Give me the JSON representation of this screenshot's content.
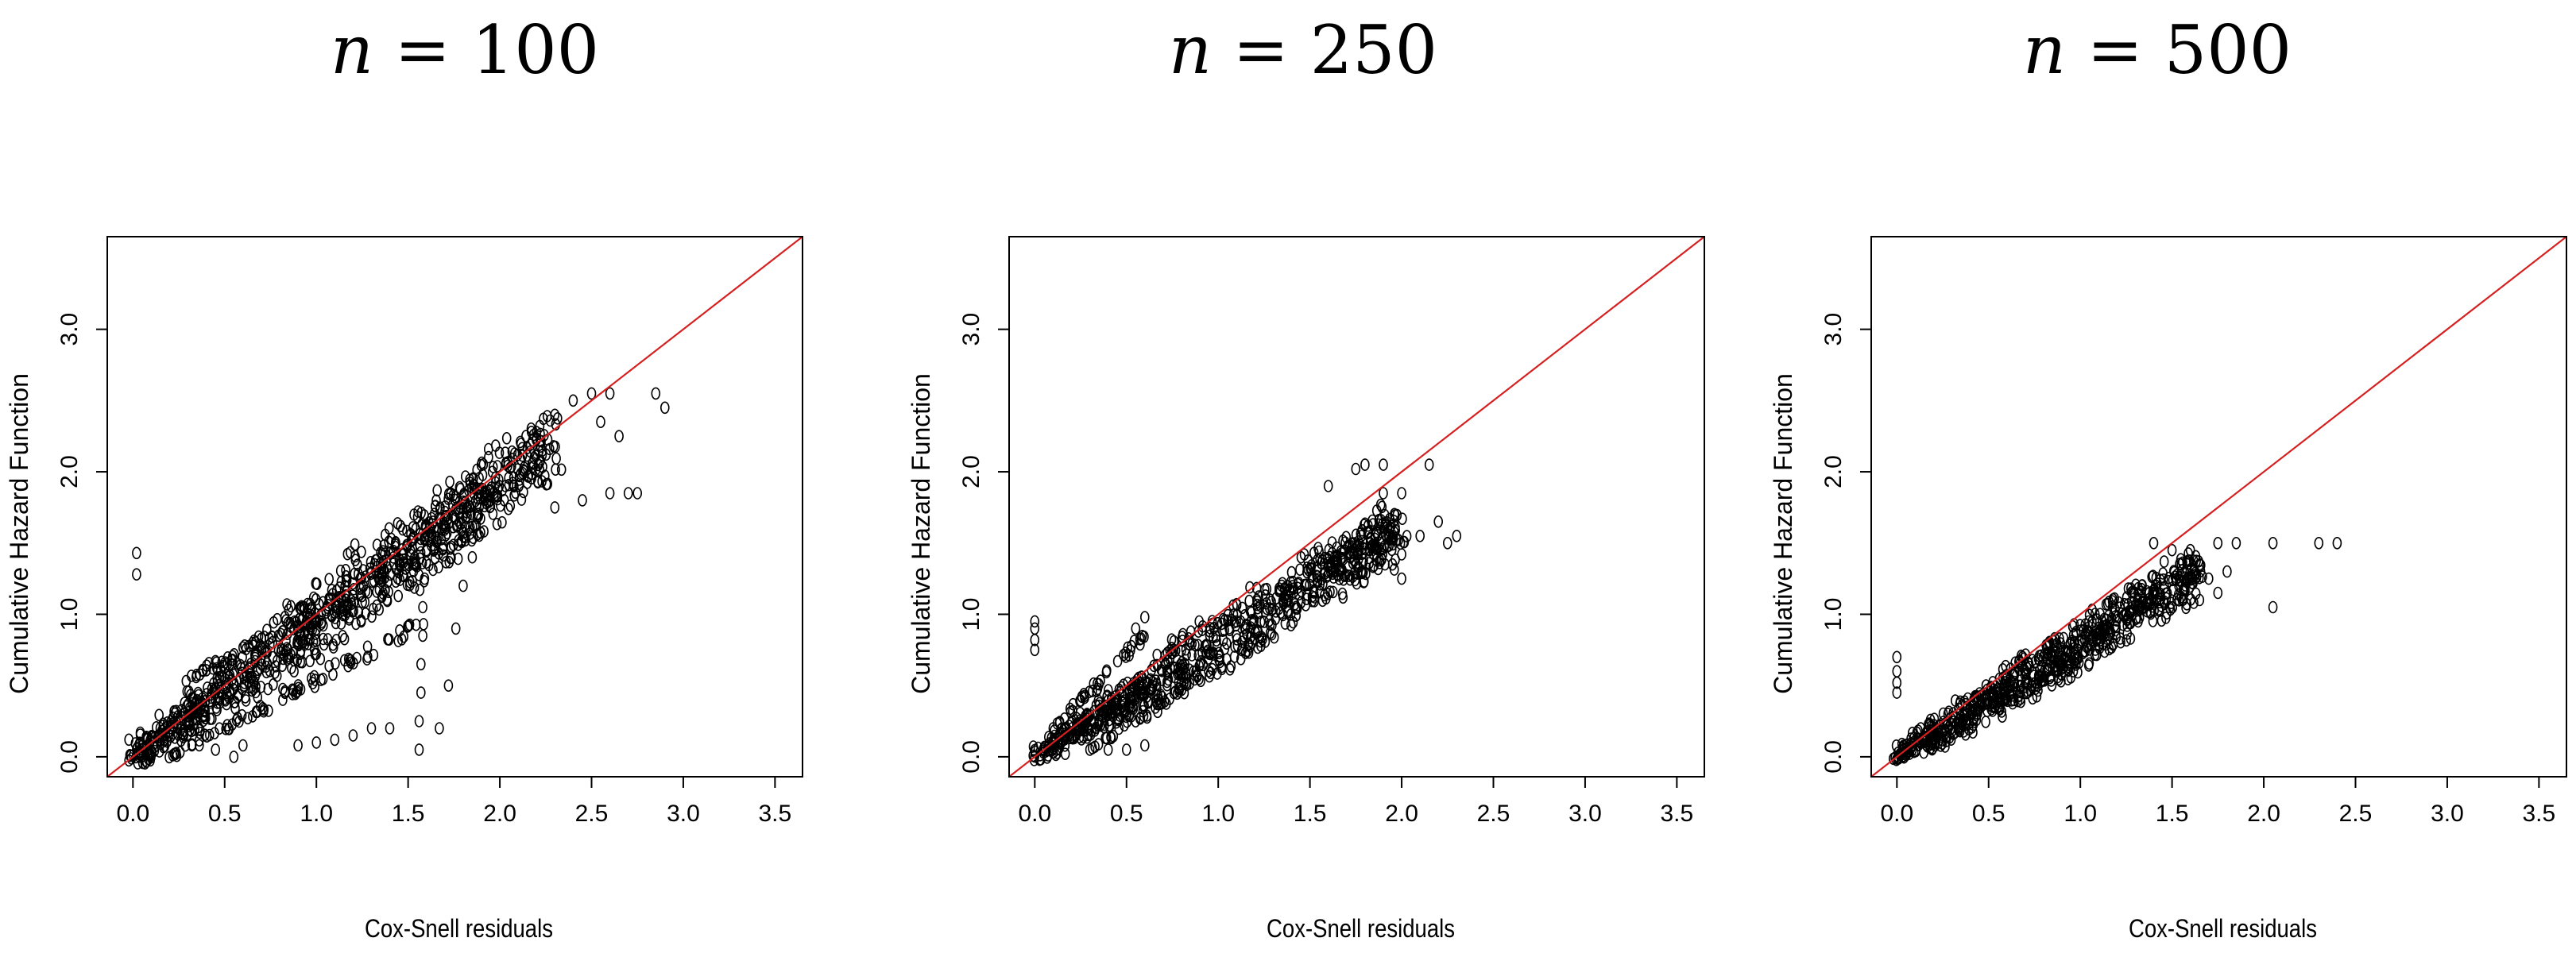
{
  "colors": {
    "points": "#000000",
    "reference_line": "#d62020",
    "frame": "#000000"
  },
  "chart_data": [
    {
      "type": "scatter",
      "title": "n = 100",
      "title_var": "n",
      "title_rest": " = 100",
      "xlabel": "Cox-Snell residuals",
      "ylabel": "Cumulative Hazard Function",
      "xlim": [
        -0.14,
        3.65
      ],
      "ylim": [
        -0.14,
        3.65
      ],
      "xticks": [
        "0.0",
        "0.5",
        "1.0",
        "1.5",
        "2.0",
        "2.5",
        "3.0",
        "3.5"
      ],
      "yticks": [
        "0.0",
        "1.0",
        "2.0",
        "3.0"
      ],
      "reference_line": {
        "slope": 1,
        "intercept": 0
      },
      "grid": false,
      "bands": [
        {
          "x0": 0.0,
          "x1": 2.3,
          "y0": 0.0,
          "y1": 2.2,
          "width": 0.34,
          "count": 900
        },
        {
          "x0": 0.3,
          "x1": 1.9,
          "y0": 0.55,
          "y1": 1.6,
          "width": 0.08,
          "count": 80
        },
        {
          "x0": 0.2,
          "x1": 1.6,
          "y0": 0.0,
          "y1": 0.95,
          "width": 0.06,
          "count": 80
        }
      ],
      "points": [
        [
          0.02,
          1.43
        ],
        [
          0.02,
          1.28
        ],
        [
          1.56,
          0.05
        ],
        [
          1.56,
          0.25
        ],
        [
          1.57,
          0.45
        ],
        [
          1.57,
          0.65
        ],
        [
          1.58,
          0.85
        ],
        [
          1.58,
          1.05
        ],
        [
          1.59,
          1.25
        ],
        [
          1.6,
          1.45
        ],
        [
          1.67,
          0.2
        ],
        [
          1.72,
          0.5
        ],
        [
          1.76,
          0.9
        ],
        [
          1.8,
          1.2
        ],
        [
          1.85,
          1.4
        ],
        [
          0.9,
          0.08
        ],
        [
          1.0,
          0.1
        ],
        [
          1.1,
          0.12
        ],
        [
          1.2,
          0.15
        ],
        [
          1.3,
          0.2
        ],
        [
          1.4,
          0.2
        ],
        [
          0.45,
          0.05
        ],
        [
          0.55,
          0.0
        ],
        [
          0.6,
          0.08
        ],
        [
          2.3,
          2.4
        ],
        [
          2.4,
          2.5
        ],
        [
          2.5,
          2.55
        ],
        [
          2.6,
          2.55
        ],
        [
          2.55,
          2.35
        ],
        [
          2.65,
          2.25
        ],
        [
          2.7,
          1.85
        ],
        [
          2.75,
          1.85
        ],
        [
          2.85,
          2.55
        ],
        [
          2.9,
          2.45
        ],
        [
          2.6,
          1.85
        ],
        [
          2.45,
          1.8
        ],
        [
          2.3,
          1.75
        ]
      ]
    },
    {
      "type": "scatter",
      "title": "n = 250",
      "title_var": "n",
      "title_rest": " = 250",
      "xlabel": "Cox-Snell residuals",
      "ylabel": "Cumulative Hazard Function",
      "xlim": [
        -0.14,
        3.65
      ],
      "ylim": [
        -0.14,
        3.65
      ],
      "xticks": [
        "0.0",
        "0.5",
        "1.0",
        "1.5",
        "2.0",
        "2.5",
        "3.0",
        "3.5"
      ],
      "yticks": [
        "0.0",
        "1.0",
        "2.0",
        "3.0"
      ],
      "reference_line": {
        "slope": 1,
        "intercept": 0
      },
      "grid": false,
      "bands": [
        {
          "x0": 0.0,
          "x1": 2.0,
          "y0": 0.0,
          "y1": 1.62,
          "width": 0.26,
          "count": 750
        },
        {
          "x0": 0.1,
          "x1": 0.6,
          "y0": 0.2,
          "y1": 0.85,
          "width": 0.05,
          "count": 40
        },
        {
          "x0": 0.3,
          "x1": 1.3,
          "y0": 0.05,
          "y1": 0.9,
          "width": 0.05,
          "count": 50
        }
      ],
      "points": [
        [
          0.0,
          0.95
        ],
        [
          0.0,
          0.9
        ],
        [
          0.0,
          0.82
        ],
        [
          0.0,
          0.75
        ],
        [
          0.55,
          0.9
        ],
        [
          0.6,
          0.98
        ],
        [
          1.6,
          1.9
        ],
        [
          1.75,
          2.02
        ],
        [
          1.8,
          2.05
        ],
        [
          1.9,
          2.05
        ],
        [
          2.15,
          2.05
        ],
        [
          1.9,
          1.85
        ],
        [
          2.0,
          1.85
        ],
        [
          2.2,
          1.65
        ],
        [
          2.3,
          1.55
        ],
        [
          2.25,
          1.5
        ],
        [
          2.1,
          1.55
        ],
        [
          1.95,
          1.35
        ],
        [
          2.0,
          1.25
        ],
        [
          0.3,
          0.05
        ],
        [
          0.4,
          0.05
        ],
        [
          0.5,
          0.05
        ],
        [
          0.6,
          0.08
        ]
      ]
    },
    {
      "type": "scatter",
      "title": "n = 500",
      "title_var": "n",
      "title_rest": " = 500",
      "xlabel": "Cox-Snell residuals",
      "ylabel": "Cumulative Hazard Function",
      "xlim": [
        -0.14,
        3.65
      ],
      "ylim": [
        -0.14,
        3.65
      ],
      "xticks": [
        "0.0",
        "0.5",
        "1.0",
        "1.5",
        "2.0",
        "2.5",
        "3.0",
        "3.5"
      ],
      "yticks": [
        "0.0",
        "1.0",
        "2.0",
        "3.0"
      ],
      "reference_line": {
        "slope": 1,
        "intercept": 0
      },
      "grid": false,
      "bands": [
        {
          "x0": 0.0,
          "x1": 1.65,
          "y0": 0.0,
          "y1": 1.3,
          "width": 0.22,
          "count": 700
        },
        {
          "x0": 0.0,
          "x1": 1.0,
          "y0": 0.0,
          "y1": 0.7,
          "width": 0.06,
          "count": 40
        }
      ],
      "points": [
        [
          0.0,
          0.7
        ],
        [
          0.0,
          0.6
        ],
        [
          0.0,
          0.52
        ],
        [
          0.0,
          0.45
        ],
        [
          1.4,
          1.5
        ],
        [
          1.5,
          1.45
        ],
        [
          1.6,
          1.45
        ],
        [
          1.75,
          1.5
        ],
        [
          1.85,
          1.5
        ],
        [
          1.65,
          1.35
        ],
        [
          1.7,
          1.25
        ],
        [
          1.75,
          1.15
        ],
        [
          1.65,
          1.1
        ],
        [
          1.8,
          1.3
        ],
        [
          2.05,
          1.5
        ],
        [
          2.05,
          1.05
        ],
        [
          2.3,
          1.5
        ],
        [
          2.4,
          1.5
        ],
        [
          0.9,
          0.7
        ],
        [
          0.85,
          0.75
        ],
        [
          0.7,
          0.6
        ]
      ]
    }
  ]
}
